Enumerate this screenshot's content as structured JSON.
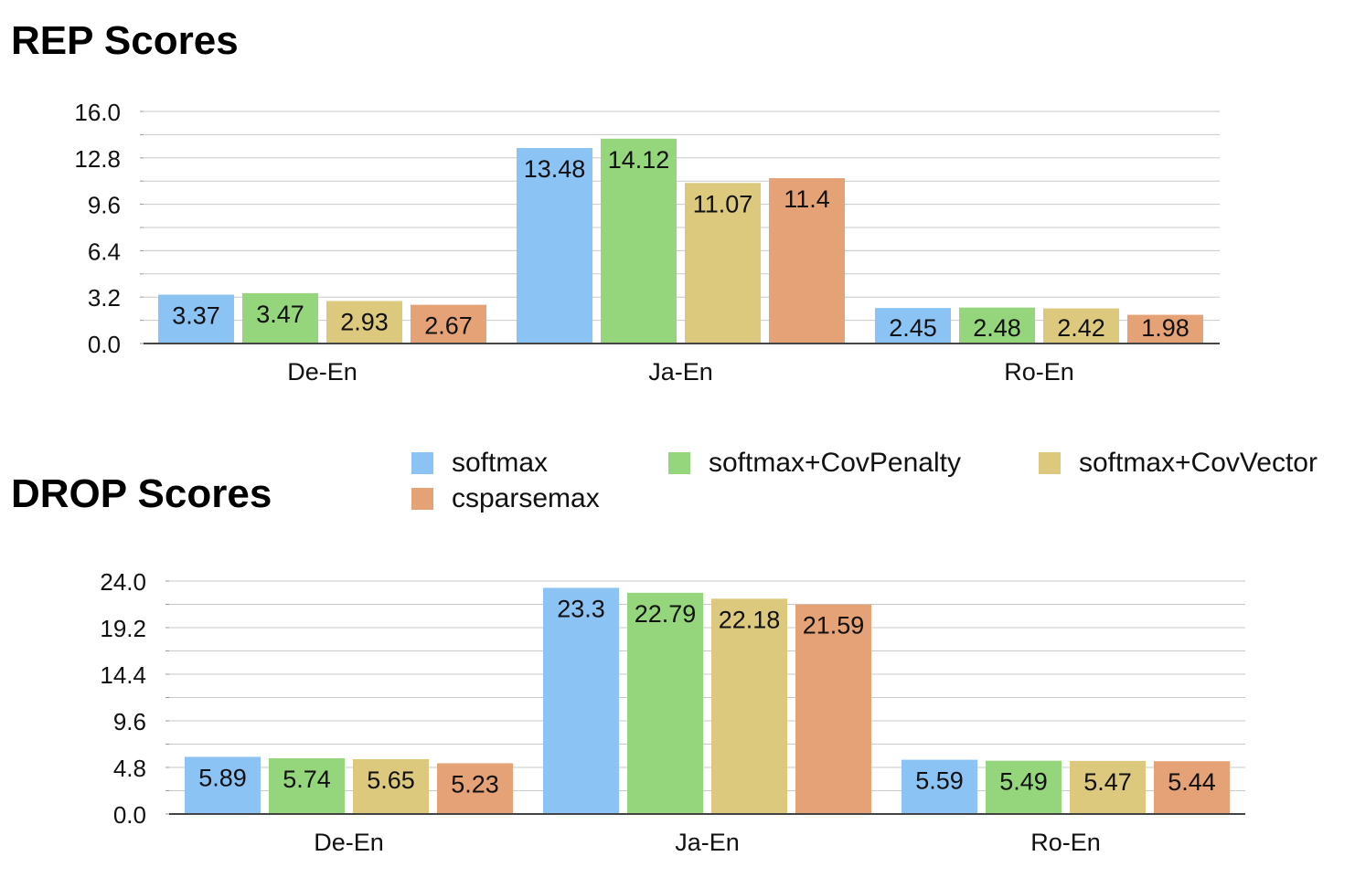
{
  "legend": [
    {
      "name": "softmax",
      "color": "#8cc3f5"
    },
    {
      "name": "softmax+CovPenalty",
      "color": "#95d57b"
    },
    {
      "name": "softmax+CovVector",
      "color": "#dcc97e"
    },
    {
      "name": "csparsemax",
      "color": "#e6a277"
    }
  ],
  "chart_data": [
    {
      "type": "bar",
      "title": "REP Scores",
      "categories": [
        "De-En",
        "Ja-En",
        "Ro-En"
      ],
      "ylim": [
        0,
        16
      ],
      "yticks": [
        "0.0",
        "3.2",
        "6.4",
        "9.6",
        "12.8",
        "16.0"
      ],
      "grid": true,
      "series": [
        {
          "name": "softmax",
          "values": [
            3.37,
            13.48,
            2.45
          ],
          "labels": [
            "3.37",
            "13.48",
            "2.45"
          ]
        },
        {
          "name": "softmax+CovPenalty",
          "values": [
            3.47,
            14.12,
            2.48
          ],
          "labels": [
            "3.47",
            "14.12",
            "2.48"
          ]
        },
        {
          "name": "softmax+CovVector",
          "values": [
            2.93,
            11.07,
            2.42
          ],
          "labels": [
            "2.93",
            "11.07",
            "2.42"
          ]
        },
        {
          "name": "csparsemax",
          "values": [
            2.67,
            11.4,
            1.98
          ],
          "labels": [
            "2.67",
            "11.4",
            "1.98"
          ]
        }
      ]
    },
    {
      "type": "bar",
      "title": "DROP Scores",
      "categories": [
        "De-En",
        "Ja-En",
        "Ro-En"
      ],
      "ylim": [
        0,
        24
      ],
      "yticks": [
        "0.0",
        "4.8",
        "9.6",
        "14.4",
        "19.2",
        "24.0"
      ],
      "grid": true,
      "series": [
        {
          "name": "softmax",
          "values": [
            5.89,
            23.3,
            5.59
          ],
          "labels": [
            "5.89",
            "23.3",
            "5.59"
          ]
        },
        {
          "name": "softmax+CovPenalty",
          "values": [
            5.74,
            22.79,
            5.49
          ],
          "labels": [
            "5.74",
            "22.79",
            "5.49"
          ]
        },
        {
          "name": "softmax+CovVector",
          "values": [
            5.65,
            22.18,
            5.47
          ],
          "labels": [
            "5.65",
            "22.18",
            "5.47"
          ]
        },
        {
          "name": "csparsemax",
          "values": [
            5.23,
            21.59,
            5.44
          ],
          "labels": [
            "5.23",
            "21.59",
            "5.44"
          ]
        }
      ]
    }
  ]
}
